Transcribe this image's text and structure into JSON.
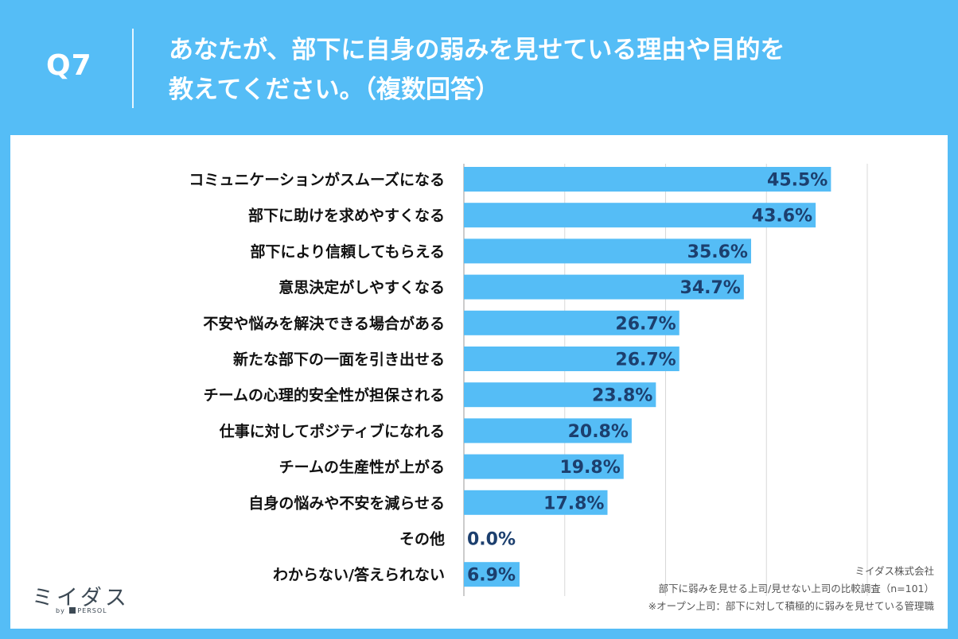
{
  "header": {
    "question_number": "Q7",
    "title_line1": "あなたが、部下に自身の弱みを見せている理由や目的を",
    "title_line2": "教えてください。（複数回答）"
  },
  "chart_data": {
    "type": "bar",
    "orientation": "horizontal",
    "title": "あなたが、部下に自身の弱みを見せている理由や目的を教えてください。（複数回答）",
    "categories": [
      "コミュニケーションがスムーズになる",
      "部下に助けを求めやすくなる",
      "部下により信頼してもらえる",
      "意思決定がしやすくなる",
      "不安や悩みを解決できる場合がある",
      "新たな部下の一面を引き出せる",
      "チームの心理的安全性が担保される",
      "仕事に対してポジティブになれる",
      "チームの生産性が上がる",
      "自身の悩みや不安を減らせる",
      "その他",
      "わからない/答えられない"
    ],
    "values": [
      45.5,
      43.6,
      35.6,
      34.7,
      26.7,
      26.7,
      23.8,
      20.8,
      19.8,
      17.8,
      0.0,
      6.9
    ],
    "value_labels": [
      "45.5%",
      "43.6%",
      "35.6%",
      "34.7%",
      "26.7%",
      "26.7%",
      "23.8%",
      "20.8%",
      "19.8%",
      "17.8%",
      "0.0%",
      "6.9%"
    ],
    "xlim": [
      0,
      55
    ],
    "grid_lines_at": [
      0,
      12.5,
      25,
      37.5,
      50
    ],
    "bar_color": "#55bdf6",
    "label_color": "#1c3f6e"
  },
  "logo": {
    "main": "ミイダス",
    "sub_prefix": "by",
    "sub_brand": "PERSOL"
  },
  "source": {
    "company": "ミイダス株式会社",
    "survey": "部下に弱みを見せる上司/見せない上司の比較調査（n=101）",
    "note": "※オープン上司：部下に対して積極的に弱みを見せている管理職"
  }
}
